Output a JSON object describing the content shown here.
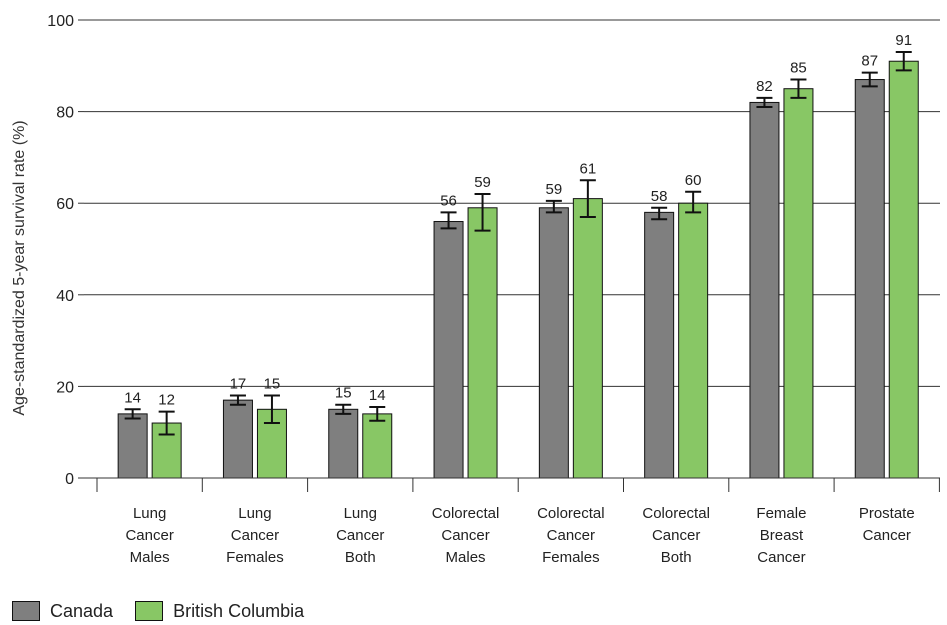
{
  "chart_data": {
    "type": "bar",
    "title": "",
    "xlabel": "",
    "ylabel": "Age-standardized 5-year survival rate (%)",
    "ylim": [
      0,
      100
    ],
    "yticks": [
      0,
      20,
      40,
      60,
      80,
      100
    ],
    "grid": "horizontal",
    "legend_position": "bottom-left",
    "categories": [
      [
        "Lung",
        "Cancer",
        "Males"
      ],
      [
        "Lung",
        "Cancer",
        "Females"
      ],
      [
        "Lung",
        "Cancer",
        "Both"
      ],
      [
        "Colorectal",
        "Cancer",
        "Males"
      ],
      [
        "Colorectal",
        "Cancer",
        "Females"
      ],
      [
        "Colorectal",
        "Cancer",
        "Both"
      ],
      [
        "Female",
        "Breast",
        "Cancer"
      ],
      [
        "Prostate",
        "Cancer"
      ]
    ],
    "series": [
      {
        "name": "Canada",
        "color": "#7f7f7f",
        "values": [
          14,
          17,
          15,
          56,
          59,
          58,
          82,
          87
        ],
        "error_low": [
          13,
          16,
          14,
          54.5,
          58,
          56.5,
          81,
          85.5
        ],
        "error_high": [
          15,
          18,
          16,
          58,
          60.5,
          59,
          83,
          88.5
        ]
      },
      {
        "name": "British Columbia",
        "color": "#88c765",
        "values": [
          12,
          15,
          14,
          59,
          61,
          60,
          85,
          91
        ],
        "error_low": [
          9.5,
          12,
          12.5,
          54,
          57,
          58,
          83,
          89
        ],
        "error_high": [
          14.5,
          18,
          15.5,
          62,
          65,
          62.5,
          87,
          93
        ]
      }
    ]
  }
}
